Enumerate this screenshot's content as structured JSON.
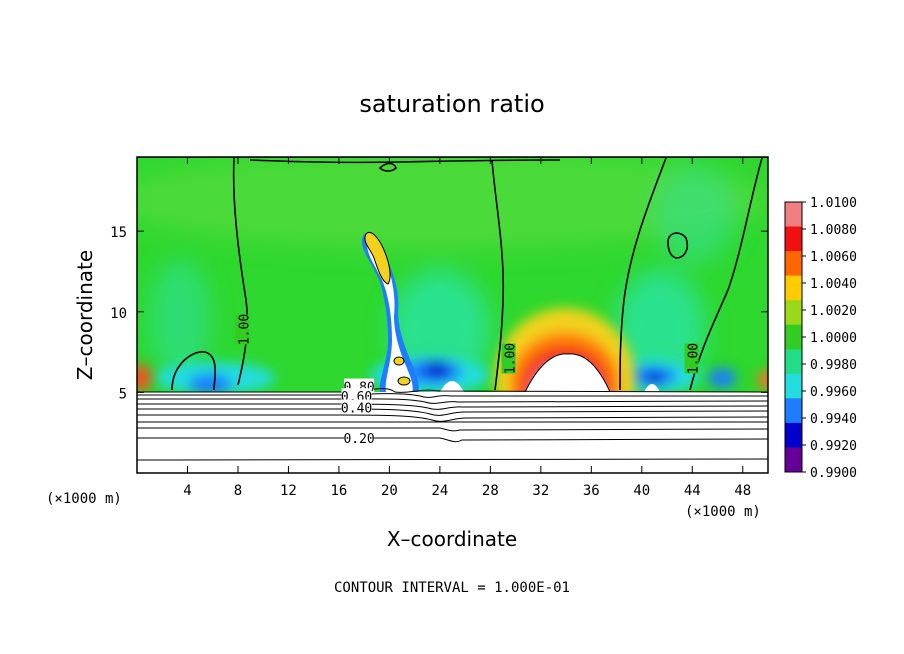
{
  "chart_data": {
    "type": "heatmap",
    "title": "saturation ratio",
    "xlabel": "X–coordinate",
    "ylabel": "Z–coordinate",
    "x_unit_label": "(×1000 m)",
    "z_unit_label": "(×1000 m)",
    "footer": "CONTOUR INTERVAL =  1.000E-01",
    "xlim": [
      0,
      50
    ],
    "ylim": [
      0,
      19.6
    ],
    "x_ticks": [
      "4",
      "8",
      "12",
      "16",
      "20",
      "24",
      "28",
      "32",
      "36",
      "40",
      "44",
      "48"
    ],
    "x_tick_values": [
      4,
      8,
      12,
      16,
      20,
      24,
      28,
      32,
      36,
      40,
      44,
      48
    ],
    "y_ticks": [
      "5",
      "10",
      "15"
    ],
    "y_tick_values": [
      5,
      10,
      15
    ],
    "colorbar": {
      "labels": [
        "1.0100",
        "1.0080",
        "1.0060",
        "1.0040",
        "1.0020",
        "1.0000",
        "0.9980",
        "0.9960",
        "0.9940",
        "0.9920",
        "0.9900"
      ],
      "values": [
        1.01,
        1.008,
        1.006,
        1.004,
        1.002,
        1.0,
        0.998,
        0.996,
        0.994,
        0.992,
        0.99
      ],
      "colors": [
        "#f08080",
        "#f01010",
        "#ff6600",
        "#ffcc00",
        "#9ad81a",
        "#33cc22",
        "#22dd88",
        "#22dddd",
        "#1e7cff",
        "#0000cc",
        "#660099"
      ]
    },
    "contour_interval": 0.1,
    "contour_labels": [
      {
        "text": "1.00",
        "x": 8.5,
        "z": 8.9
      },
      {
        "text": "1.00",
        "x": 29.6,
        "z": 7.1
      },
      {
        "text": "1.00",
        "x": 44.1,
        "z": 7.1
      },
      {
        "text": "0.80",
        "x": 17.6,
        "z": 5.3
      },
      {
        "text": "0.60",
        "x": 17.4,
        "z": 4.7
      },
      {
        "text": "0.40",
        "x": 17.4,
        "z": 4.0
      },
      {
        "text": "0.20",
        "x": 17.6,
        "z": 2.1
      }
    ],
    "features": [
      {
        "name": "supersaturated-dome",
        "x": 34,
        "z_top": 8.9,
        "max": 1.01
      },
      {
        "name": "cloud-plume",
        "x_range": [
          18,
          21
        ],
        "z_range": [
          5.5,
          15.2
        ]
      },
      {
        "name": "subsaturated-pocket",
        "x": 23.5,
        "z": 5.9
      },
      {
        "name": "subsaturated-pocket",
        "x": 40.5,
        "z": 6.2
      }
    ],
    "grid": false,
    "legend": "right"
  }
}
